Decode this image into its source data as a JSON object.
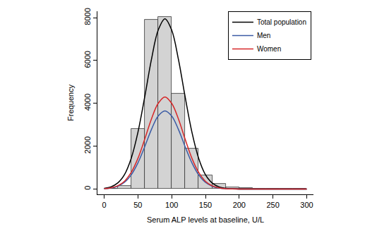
{
  "chart_data": {
    "type": "histogram",
    "xlabel": "Serum ALP levels at baseline, U/L",
    "ylabel": "Frequency",
    "bins": [
      0,
      20,
      40,
      60,
      80,
      100,
      120,
      140,
      160,
      180,
      200,
      220,
      240,
      260,
      280,
      300
    ],
    "counts": [
      20,
      150,
      2800,
      7900,
      8050,
      4450,
      1900,
      650,
      230,
      90,
      40,
      20,
      10,
      5,
      5
    ],
    "color": "#d3d3d3",
    "series": [
      {
        "name": "Total population",
        "color": "#000000",
        "type": "line",
        "x": [
          0,
          10,
          20,
          30,
          40,
          50,
          60,
          70,
          80,
          90,
          100,
          110,
          120,
          130,
          140,
          150,
          160,
          170,
          180,
          190,
          200,
          250,
          300
        ],
        "values": [
          30,
          100,
          280,
          670,
          1430,
          2650,
          4290,
          6050,
          7420,
          7950,
          7420,
          6050,
          4290,
          2650,
          1430,
          670,
          280,
          100,
          30,
          10,
          0,
          0,
          0
        ]
      },
      {
        "name": "Men",
        "color": "#3b5ba5",
        "type": "line",
        "x": [
          0,
          10,
          20,
          30,
          40,
          50,
          60,
          70,
          80,
          90,
          100,
          110,
          120,
          130,
          140,
          150,
          160,
          170,
          180,
          190,
          200,
          250,
          300
        ],
        "values": [
          15,
          45,
          130,
          310,
          660,
          1220,
          1970,
          2780,
          3410,
          3650,
          3410,
          2780,
          1970,
          1220,
          660,
          310,
          130,
          45,
          15,
          5,
          0,
          0,
          0
        ]
      },
      {
        "name": "Women",
        "color": "#d62728",
        "type": "line",
        "x": [
          0,
          10,
          20,
          30,
          40,
          50,
          60,
          70,
          80,
          90,
          100,
          110,
          120,
          130,
          140,
          150,
          160,
          170,
          180,
          190,
          200,
          250,
          300
        ],
        "values": [
          15,
          55,
          150,
          360,
          770,
          1430,
          2320,
          3270,
          4000,
          4300,
          4000,
          3270,
          2320,
          1430,
          770,
          360,
          150,
          55,
          15,
          5,
          0,
          0,
          0
        ]
      }
    ],
    "xlim": [
      -10,
      310
    ],
    "ylim": [
      -250,
      8300
    ],
    "xticks": [
      0,
      50,
      100,
      150,
      200,
      250,
      300
    ],
    "yticks": [
      0,
      2000,
      4000,
      6000,
      8000
    ],
    "legend": "top-right",
    "grid": false
  }
}
